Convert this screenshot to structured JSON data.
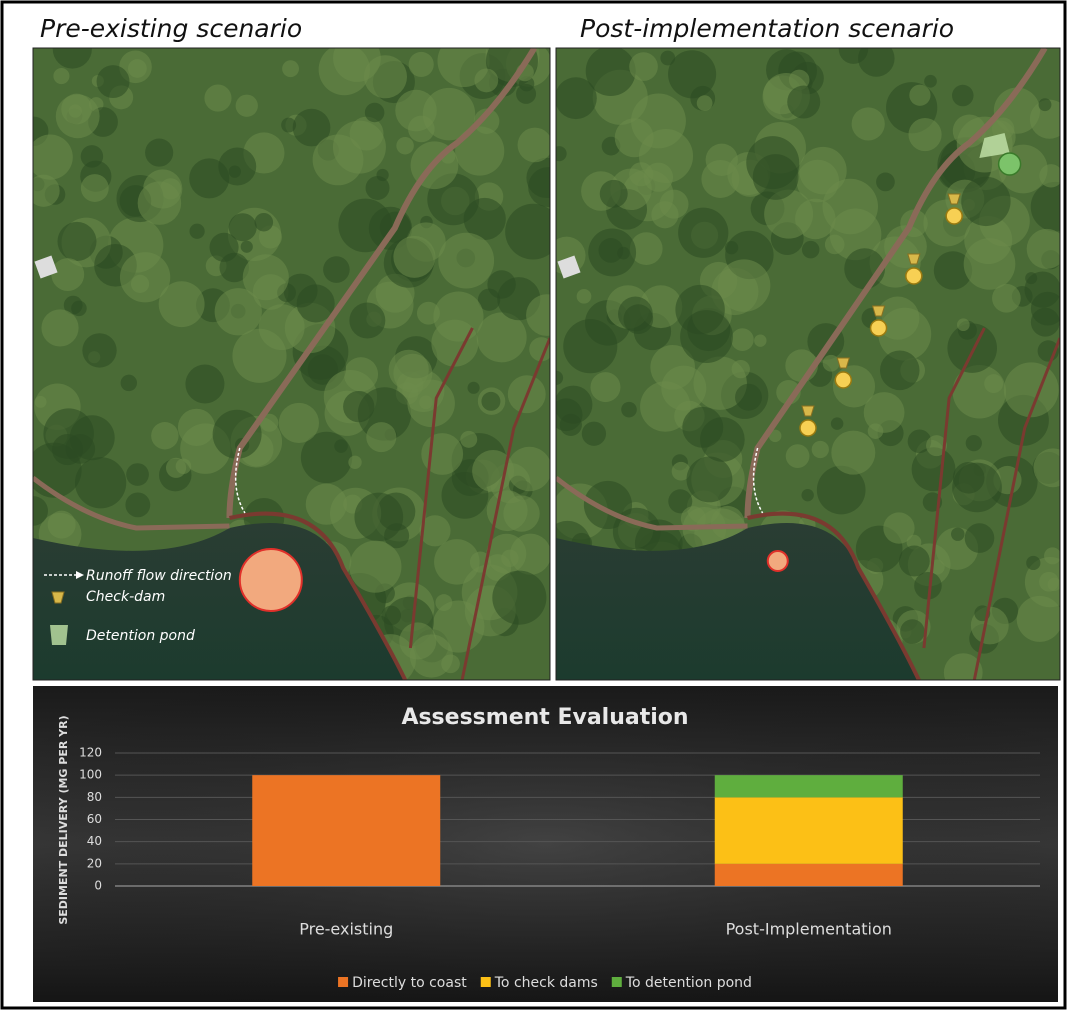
{
  "panels": [
    {
      "title": "Pre-existing scenario"
    },
    {
      "title": "Post-implementation scenario"
    }
  ],
  "map_legend": [
    "Runoff flow direction",
    "Check-dam",
    "Detention pond"
  ],
  "chart_data": {
    "type": "bar",
    "stacked": true,
    "title": "Assessment Evaluation",
    "y_label": "SEDIMENT DELIVERY (MG PER YR)",
    "categories": [
      "Pre-existing",
      "Post-Implementation"
    ],
    "series": [
      {
        "name": "Directly to coast",
        "color": "#ec7424",
        "values": [
          100,
          20
        ]
      },
      {
        "name": "To check dams",
        "color": "#fcc016",
        "values": [
          0,
          60
        ]
      },
      {
        "name": "To detention pond",
        "color": "#5fae3e",
        "values": [
          0,
          20
        ]
      }
    ],
    "ylim": [
      0,
      120
    ],
    "yticks": [
      0,
      20,
      40,
      60,
      80,
      100,
      120
    ],
    "grid": true,
    "legend": "bottom"
  }
}
